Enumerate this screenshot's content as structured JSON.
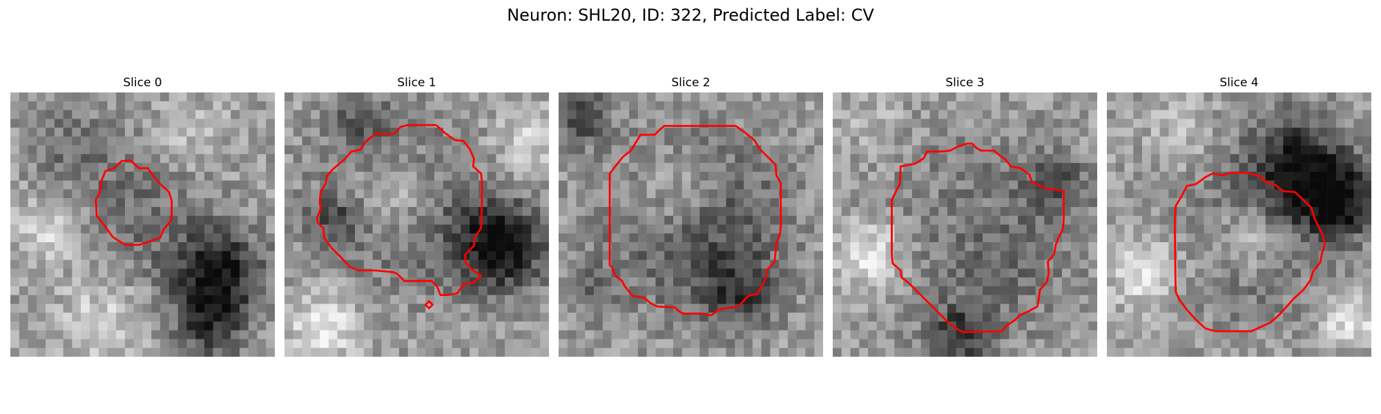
{
  "figure": {
    "title": "Neuron: SHL20, ID: 322, Predicted Label: CV",
    "contour_color": "#ff0000",
    "colormap": "grayscale"
  },
  "panels": [
    {
      "title": "Slice 0"
    },
    {
      "title": "Slice 1"
    },
    {
      "title": "Slice 2"
    },
    {
      "title": "Slice 3"
    },
    {
      "title": "Slice 4"
    }
  ]
}
